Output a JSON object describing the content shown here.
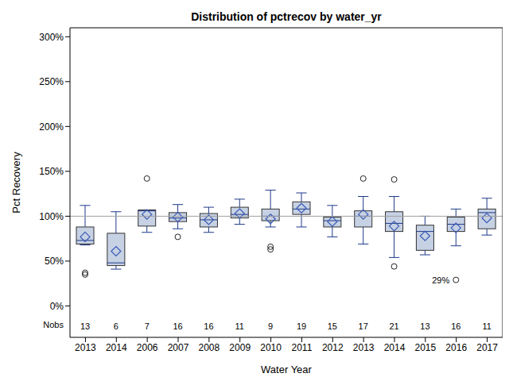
{
  "chart_data": {
    "type": "box",
    "title": "Distribution of pctrecov by water_yr",
    "x_label": "Water Year",
    "y_label": "Pct Recovery",
    "categories": [
      "2013",
      "2014",
      "2006",
      "2007",
      "2008",
      "2009",
      "2010",
      "2011",
      "2012",
      "2013",
      "2014",
      "2015",
      "2016",
      "2017"
    ],
    "boxes": [
      {
        "low": 68,
        "q1": 69,
        "median": 73,
        "q3": 88,
        "high": 112,
        "mean": 77,
        "outliers": [
          37,
          35
        ]
      },
      {
        "low": 41,
        "q1": 45,
        "median": 48,
        "q3": 81,
        "high": 105,
        "mean": 61,
        "outliers": []
      },
      {
        "low": 82,
        "q1": 89,
        "median": 106,
        "q3": 107,
        "high": 107,
        "mean": 102,
        "outliers": [
          142
        ]
      },
      {
        "low": 86,
        "q1": 94,
        "median": 98,
        "q3": 104,
        "high": 113,
        "mean": 99,
        "outliers": [
          77
        ]
      },
      {
        "low": 82,
        "q1": 88,
        "median": 96,
        "q3": 103,
        "high": 110,
        "mean": 96,
        "outliers": []
      },
      {
        "low": 91,
        "q1": 98,
        "median": 102,
        "q3": 110,
        "high": 119,
        "mean": 103,
        "outliers": []
      },
      {
        "low": 88,
        "q1": 95,
        "median": 100,
        "q3": 108,
        "high": 129,
        "mean": 97,
        "outliers": [
          66,
          63
        ]
      },
      {
        "low": 88,
        "q1": 102,
        "median": 108,
        "q3": 116,
        "high": 126,
        "mean": 109,
        "outliers": []
      },
      {
        "low": 77,
        "q1": 88,
        "median": 95,
        "q3": 99,
        "high": 112,
        "mean": 94,
        "outliers": []
      },
      {
        "low": 69,
        "q1": 88,
        "median": 100,
        "q3": 106,
        "high": 122,
        "mean": 102,
        "outliers": [
          142
        ]
      },
      {
        "low": 54,
        "q1": 83,
        "median": 92,
        "q3": 105,
        "high": 122,
        "mean": 89,
        "outliers": [
          141,
          44
        ]
      },
      {
        "low": 57,
        "q1": 62,
        "median": 83,
        "q3": 90,
        "high": 100,
        "mean": 78,
        "outliers": []
      },
      {
        "low": 67,
        "q1": 83,
        "median": 91,
        "q3": 99,
        "high": 108,
        "mean": 87,
        "outliers": [
          29
        ]
      },
      {
        "low": 79,
        "q1": 86,
        "median": 104,
        "q3": 108,
        "high": 120,
        "mean": 98,
        "outliers": []
      }
    ],
    "nobs_label": "Nobs",
    "nobs": [
      13,
      6,
      7,
      16,
      16,
      11,
      9,
      19,
      15,
      17,
      21,
      13,
      16,
      11
    ],
    "annotations": [
      {
        "text": "29%",
        "category_index": 12,
        "y": 29
      }
    ],
    "reference_line": 100,
    "ylim": [
      -35,
      310
    ],
    "yticks": [
      {
        "value": 0,
        "label": "0%"
      },
      {
        "value": 50,
        "label": "50%"
      },
      {
        "value": 100,
        "label": "100%"
      },
      {
        "value": 150,
        "label": "150%"
      },
      {
        "value": 200,
        "label": "200%"
      },
      {
        "value": 250,
        "label": "250%"
      },
      {
        "value": 300,
        "label": "300%"
      }
    ],
    "color": "#c6d1e4",
    "grid": false
  }
}
